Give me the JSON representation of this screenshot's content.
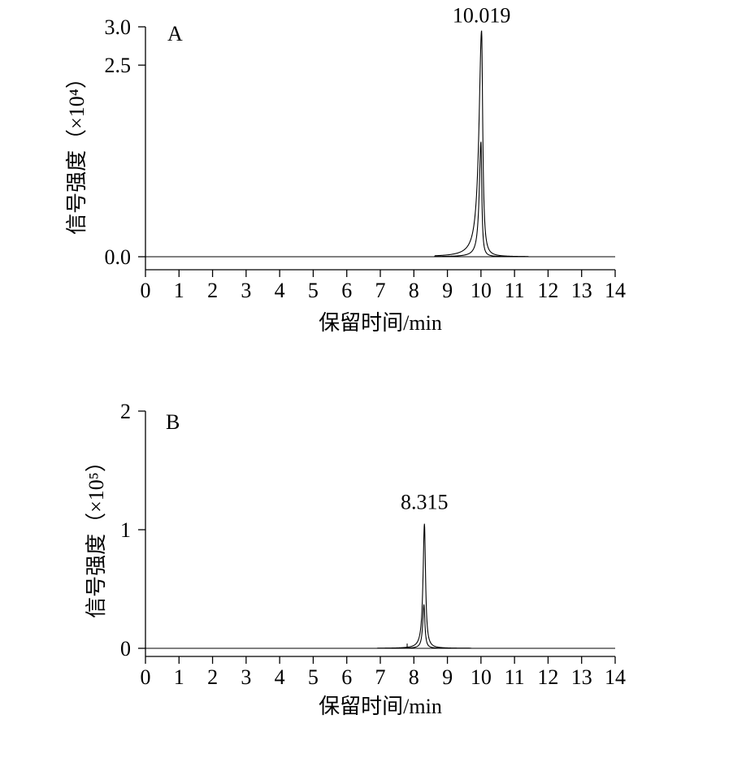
{
  "chart_data": [
    {
      "type": "line",
      "panel_label": "A",
      "title": "",
      "xlabel": "保留时间/min",
      "ylabel": "信号强度（×10⁴）",
      "xlim": [
        0,
        14
      ],
      "ylim": [
        0.0,
        3.0
      ],
      "x_ticks": [
        "0",
        "1",
        "2",
        "3",
        "4",
        "5",
        "6",
        "7",
        "8",
        "9",
        "10",
        "11",
        "12",
        "13",
        "14"
      ],
      "y_ticks": [
        "0.0",
        "2.5",
        "3.0"
      ],
      "y_tick_values": [
        0.0,
        2.5,
        3.0
      ],
      "peak_annotation": "10.019",
      "series": [
        {
          "peak_x": 10.019,
          "peak_y": 2.95,
          "width": 0.04,
          "tail": 0.35
        },
        {
          "peak_x": 10.0,
          "peak_y": 1.5,
          "width": 0.03,
          "tail": 0.2
        }
      ]
    },
    {
      "type": "line",
      "panel_label": "B",
      "title": "",
      "xlabel": "保留时间/min",
      "ylabel": "信号强度（×10⁵）",
      "xlim": [
        0,
        14
      ],
      "ylim": [
        0,
        2
      ],
      "x_ticks": [
        "0",
        "1",
        "2",
        "3",
        "4",
        "5",
        "6",
        "7",
        "8",
        "9",
        "10",
        "11",
        "12",
        "13",
        "14"
      ],
      "y_ticks": [
        "0",
        "1",
        "2"
      ],
      "y_tick_values": [
        0,
        1,
        2
      ],
      "peak_annotation": "8.315",
      "series": [
        {
          "peak_x": 8.315,
          "peak_y": 1.05,
          "width": 0.04,
          "tail": 0.06
        },
        {
          "peak_x": 8.3,
          "peak_y": 0.37,
          "width": 0.035,
          "tail": 0.05
        }
      ],
      "minor_spike": {
        "x": 7.8,
        "y": 0.04
      }
    }
  ]
}
